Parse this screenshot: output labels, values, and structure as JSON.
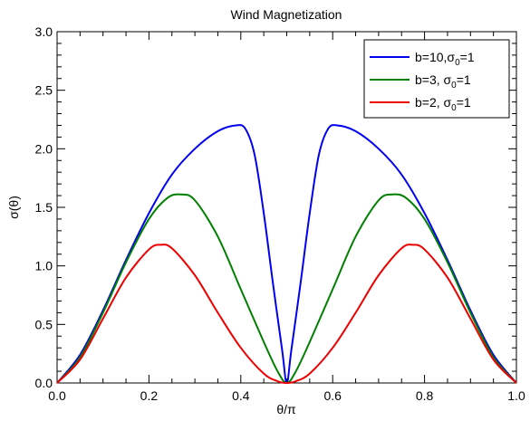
{
  "chart_data": {
    "type": "line",
    "title": "Wind Magnetization",
    "xlabel": "θ/π",
    "ylabel": "σ(θ)",
    "xlim": [
      0.0,
      1.0
    ],
    "ylim": [
      0.0,
      3.0
    ],
    "x_ticks": [
      "0.0",
      "0.2",
      "0.4",
      "0.6",
      "0.8",
      "1.0"
    ],
    "y_ticks": [
      "0.0",
      "0.5",
      "1.0",
      "1.5",
      "2.0",
      "2.5",
      "3.0"
    ],
    "grid": false,
    "legend_position": "top-right",
    "legend": [
      {
        "pre": "b=10,σ",
        "sub": "0",
        "post": "=1",
        "color": "#0000ee"
      },
      {
        "pre": "b=3, σ",
        "sub": "0",
        "post": "=1",
        "color": "#008000"
      },
      {
        "pre": "b=2, σ",
        "sub": "0",
        "post": "=1",
        "color": "#ee0000"
      }
    ],
    "series": [
      {
        "name": "b=10,σ0=1",
        "color": "#0000ee",
        "x": [
          0.0,
          0.05,
          0.1,
          0.15,
          0.2,
          0.25,
          0.3,
          0.35,
          0.39,
          0.41,
          0.43,
          0.45,
          0.47,
          0.49,
          0.5,
          0.51,
          0.53,
          0.55,
          0.57,
          0.59,
          0.61,
          0.65,
          0.7,
          0.75,
          0.8,
          0.85,
          0.9,
          0.95,
          1.0
        ],
        "y": [
          0.0,
          0.24,
          0.62,
          1.05,
          1.45,
          1.78,
          2.0,
          2.15,
          2.2,
          2.17,
          1.95,
          1.45,
          0.85,
          0.28,
          0.0,
          0.28,
          0.85,
          1.45,
          1.95,
          2.17,
          2.2,
          2.15,
          2.0,
          1.78,
          1.45,
          1.05,
          0.62,
          0.24,
          0.0
        ]
      },
      {
        "name": "b=3, σ0=1",
        "color": "#008000",
        "x": [
          0.0,
          0.05,
          0.1,
          0.15,
          0.2,
          0.24,
          0.27,
          0.3,
          0.35,
          0.4,
          0.45,
          0.48,
          0.5,
          0.52,
          0.55,
          0.6,
          0.65,
          0.7,
          0.73,
          0.76,
          0.8,
          0.85,
          0.9,
          0.95,
          1.0
        ],
        "y": [
          0.0,
          0.22,
          0.6,
          1.03,
          1.4,
          1.58,
          1.61,
          1.56,
          1.25,
          0.8,
          0.35,
          0.1,
          0.0,
          0.1,
          0.35,
          0.8,
          1.25,
          1.56,
          1.61,
          1.58,
          1.4,
          1.03,
          0.6,
          0.22,
          0.0
        ]
      },
      {
        "name": "b=2, σ0=1",
        "color": "#ee0000",
        "x": [
          0.0,
          0.05,
          0.1,
          0.15,
          0.2,
          0.225,
          0.25,
          0.3,
          0.35,
          0.4,
          0.45,
          0.48,
          0.5,
          0.52,
          0.55,
          0.6,
          0.65,
          0.7,
          0.75,
          0.775,
          0.8,
          0.85,
          0.9,
          0.95,
          1.0
        ],
        "y": [
          0.0,
          0.2,
          0.55,
          0.9,
          1.14,
          1.18,
          1.15,
          0.92,
          0.6,
          0.3,
          0.08,
          0.015,
          0.0,
          0.015,
          0.08,
          0.3,
          0.6,
          0.92,
          1.15,
          1.18,
          1.14,
          0.9,
          0.55,
          0.2,
          0.0
        ]
      }
    ]
  }
}
